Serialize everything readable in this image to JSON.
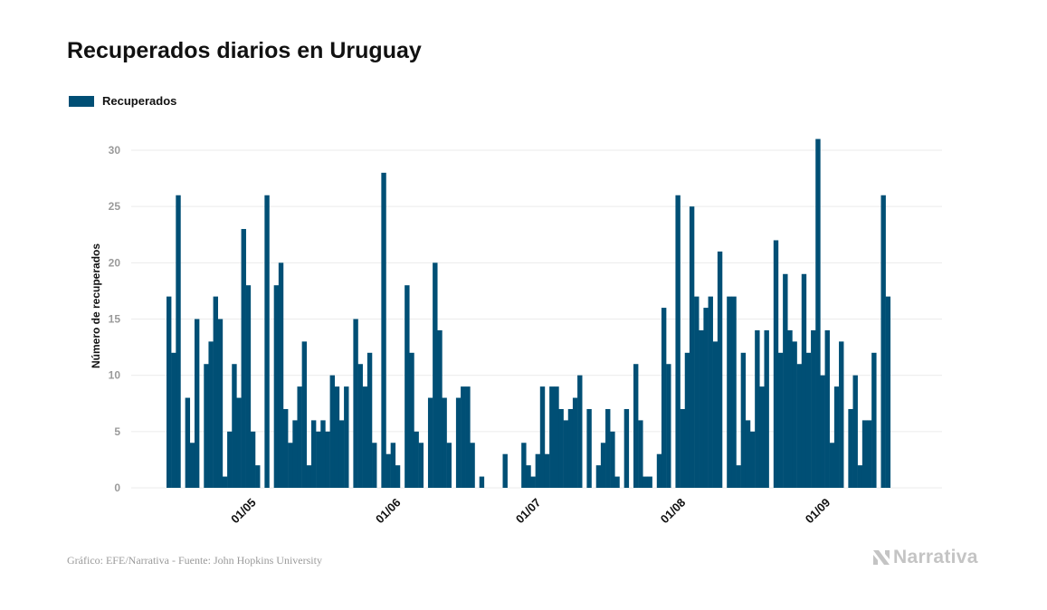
{
  "chart_data": {
    "type": "bar",
    "title": "Recuperados diarios en Uruguay",
    "ylabel": "Número de recuperados",
    "xlabel": "",
    "ylim": [
      0,
      32
    ],
    "y_ticks": [
      "0",
      "5",
      "10",
      "15",
      "20",
      "25",
      "30"
    ],
    "x_ticks": [
      "01/05",
      "01/06",
      "01/07",
      "01/08",
      "01/09"
    ],
    "x_tick_day_index": [
      18,
      49,
      79,
      110,
      141
    ],
    "grid": true,
    "legend_position": "top-left",
    "series": [
      {
        "name": "Recuperados",
        "color": "#004f75",
        "values": [
          17,
          12,
          26,
          0,
          8,
          4,
          15,
          0,
          11,
          13,
          17,
          15,
          1,
          5,
          11,
          8,
          23,
          18,
          5,
          2,
          0,
          26,
          0,
          18,
          20,
          7,
          4,
          6,
          9,
          13,
          2,
          6,
          5,
          6,
          5,
          10,
          9,
          6,
          9,
          0,
          15,
          11,
          9,
          12,
          4,
          0,
          28,
          3,
          4,
          2,
          0,
          18,
          12,
          5,
          4,
          0,
          8,
          20,
          14,
          8,
          4,
          0,
          8,
          9,
          9,
          4,
          0,
          1,
          0,
          0,
          0,
          0,
          3,
          0,
          0,
          0,
          4,
          2,
          1,
          3,
          9,
          3,
          9,
          9,
          7,
          6,
          7,
          8,
          10,
          0,
          7,
          0,
          2,
          4,
          7,
          5,
          1,
          0,
          7,
          0,
          11,
          6,
          1,
          1,
          0,
          3,
          16,
          11,
          0,
          26,
          7,
          12,
          25,
          17,
          14,
          16,
          17,
          13,
          21,
          0,
          17,
          17,
          2,
          12,
          6,
          5,
          14,
          9,
          14,
          0,
          22,
          12,
          19,
          14,
          13,
          11,
          19,
          12,
          14,
          31,
          10,
          14,
          4,
          9,
          13,
          0,
          7,
          10,
          2,
          6,
          6,
          12,
          0,
          26,
          17
        ]
      }
    ]
  },
  "footer": {
    "source": "Gráfico: EFE/Narrativa - Fuente: John Hopkins University",
    "brand": "Narrativa"
  },
  "colors": {
    "bar": "#004f75",
    "grid": "#ebebeb",
    "tick": "#9a9a9a",
    "brand": "#c4c4c4"
  }
}
